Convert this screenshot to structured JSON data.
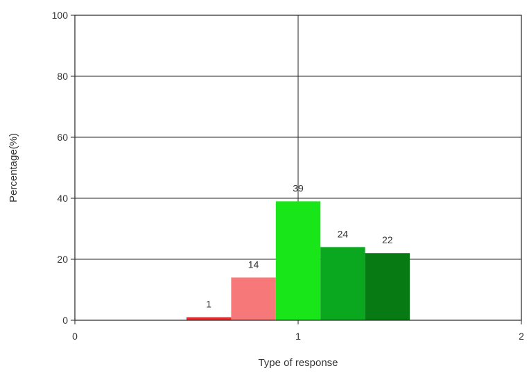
{
  "chart_data": {
    "type": "bar",
    "xlabel": "Type of response",
    "ylabel": "Percentage(%)",
    "xlim": [
      0,
      2
    ],
    "ylim": [
      0,
      100
    ],
    "x_ticks": [
      "0",
      "1",
      "2"
    ],
    "y_ticks": [
      "0",
      "20",
      "40",
      "60",
      "80",
      "100"
    ],
    "grid": true,
    "bars": [
      {
        "x_start": 0.5,
        "x_end": 0.7,
        "value": 1,
        "label": "1",
        "color": "#e03030"
      },
      {
        "x_start": 0.7,
        "x_end": 0.9,
        "value": 14,
        "label": "14",
        "color": "#f77878"
      },
      {
        "x_start": 0.9,
        "x_end": 1.1,
        "value": 39,
        "label": "39",
        "color": "#19e619"
      },
      {
        "x_start": 1.1,
        "x_end": 1.3,
        "value": 24,
        "label": "24",
        "color": "#0aa81e"
      },
      {
        "x_start": 1.3,
        "x_end": 1.5,
        "value": 22,
        "label": "22",
        "color": "#087a14"
      }
    ]
  }
}
